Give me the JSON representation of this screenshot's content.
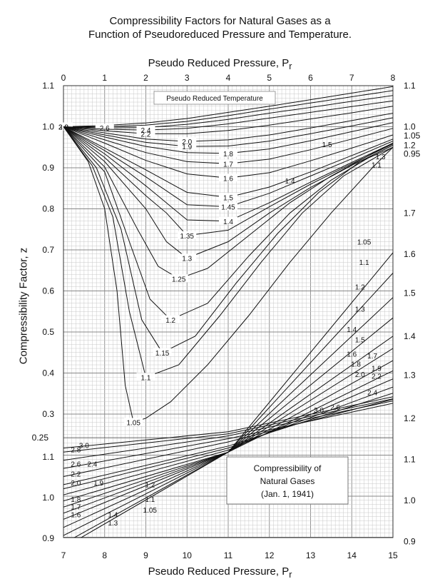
{
  "chart_data": {
    "type": "line",
    "title": "Compressibility Factors for Natural Gases as a",
    "subtitle": "Function of Pseudoreduced Pressure and Temperature.",
    "xlabel_top": "Pseudo Reduced Pressure,",
    "xlabel_bottom": "Pseudo Reduced Pressure,",
    "xlabel_symbol": "P",
    "xlabel_subscript": "r",
    "ylabel": "Compressibility Factor, z",
    "x_top_ticks": [
      "0",
      "1",
      "2",
      "3",
      "4",
      "5",
      "6",
      "7",
      "8"
    ],
    "x_bottom_ticks": [
      "7",
      "8",
      "9",
      "10",
      "11",
      "12",
      "13",
      "14",
      "15"
    ],
    "y_left_upper_ticks": [
      "1.1",
      "1.0",
      "0.9",
      "0.8",
      "0.7",
      "0.6",
      "0.5",
      "0.4",
      "0.3"
    ],
    "y_left_boundary": "0.25",
    "y_left_lower_ticks": [
      "1.1",
      "1.0",
      "0.9"
    ],
    "y_right_ticks": [
      {
        "label": "1.1",
        "z": 1.1
      },
      {
        "label": "1.0",
        "z": 1.0
      },
      {
        "label": "1.05",
        "z": 0.978
      },
      {
        "label": "1.2",
        "z": 0.955
      },
      {
        "label": "0.95",
        "z": 0.934
      },
      {
        "label": "1.7",
        "z": 0.79
      },
      {
        "label": "1.6",
        "z": 0.69
      },
      {
        "label": "1.5",
        "z": 0.595
      },
      {
        "label": "1.4",
        "z": 0.49
      },
      {
        "label": "1.3",
        "z": 0.395
      },
      {
        "label": "1.2",
        "z": 0.29
      },
      {
        "label": "1.1",
        "z": 0.19
      },
      {
        "label": "1.0",
        "z": 0.09
      },
      {
        "label": "0.9",
        "z": -0.01
      }
    ],
    "upper_range": {
      "x": [
        0,
        8
      ],
      "y": [
        0.25,
        1.1
      ]
    },
    "lower_range": {
      "x": [
        7,
        15
      ],
      "y": [
        0.9,
        1.15
      ]
    },
    "inner_label": "Pseudo Reduced Temperature",
    "note_lines": [
      "Compressibility of",
      "Natural Gases",
      "(Jan. 1, 1941)"
    ],
    "upper_curves": [
      {
        "name": "3.0",
        "x": [
          0,
          1,
          2,
          3,
          4,
          5,
          6,
          7,
          8
        ],
        "z": [
          1.0,
          1.003,
          1.009,
          1.02,
          1.035,
          1.05,
          1.066,
          1.082,
          1.098
        ]
      },
      {
        "name": "2.8",
        "x": [
          0,
          1,
          2,
          3,
          4,
          5,
          6,
          7,
          8
        ],
        "z": [
          1.0,
          1.0,
          1.004,
          1.013,
          1.027,
          1.043,
          1.058,
          1.073,
          1.088
        ]
      },
      {
        "name": "2.6",
        "x": [
          0,
          1,
          2,
          3,
          4,
          5,
          6,
          7,
          8
        ],
        "z": [
          1.0,
          0.997,
          0.998,
          1.006,
          1.018,
          1.033,
          1.047,
          1.062,
          1.076
        ]
      },
      {
        "name": "2.4",
        "x": [
          0,
          1,
          2,
          3,
          4,
          5,
          6,
          7,
          8
        ],
        "z": [
          1.0,
          0.994,
          0.992,
          0.996,
          1.007,
          1.021,
          1.035,
          1.049,
          1.063
        ]
      },
      {
        "name": "2.2",
        "x": [
          0,
          1,
          2,
          3,
          4,
          5,
          6,
          7,
          8
        ],
        "z": [
          1.0,
          0.99,
          0.983,
          0.983,
          0.991,
          1.004,
          1.019,
          1.034,
          1.05
        ]
      },
      {
        "name": "2.0",
        "x": [
          0,
          1,
          2,
          3,
          4,
          5,
          6,
          7,
          8
        ],
        "z": [
          1.0,
          0.985,
          0.97,
          0.964,
          0.968,
          0.98,
          0.997,
          1.015,
          1.033
        ]
      },
      {
        "name": "1.9",
        "x": [
          0,
          1,
          2,
          3,
          4,
          5,
          6,
          7,
          8
        ],
        "z": [
          1.0,
          0.98,
          0.962,
          0.952,
          0.953,
          0.965,
          0.983,
          1.002,
          1.022
        ]
      },
      {
        "name": "1.8",
        "x": [
          0,
          1,
          2,
          3,
          4,
          5,
          6,
          7,
          8
        ],
        "z": [
          1.0,
          0.975,
          0.952,
          0.937,
          0.935,
          0.946,
          0.966,
          0.988,
          1.01
        ]
      },
      {
        "name": "1.7",
        "x": [
          0,
          1,
          2,
          3,
          4,
          5,
          6,
          7,
          8
        ],
        "z": [
          1.0,
          0.968,
          0.937,
          0.915,
          0.91,
          0.921,
          0.944,
          0.97,
          0.996
        ]
      },
      {
        "name": "1.6",
        "x": [
          0,
          1,
          2,
          3,
          4,
          5,
          6,
          7,
          8
        ],
        "z": [
          1.0,
          0.96,
          0.918,
          0.885,
          0.875,
          0.888,
          0.917,
          0.948,
          0.98
        ]
      },
      {
        "name": "1.5",
        "x": [
          0,
          1,
          2,
          3,
          4,
          5,
          6,
          7,
          8
        ],
        "z": [
          1.0,
          0.948,
          0.895,
          0.84,
          0.828,
          0.853,
          0.89,
          0.93,
          0.97
        ]
      },
      {
        "name": "1.45",
        "x": [
          0,
          1,
          2,
          3,
          4,
          5,
          6,
          7,
          8
        ],
        "z": [
          1.0,
          0.942,
          0.878,
          0.81,
          0.805,
          0.838,
          0.88,
          0.922,
          0.965
        ]
      },
      {
        "name": "1.4",
        "x": [
          0,
          1,
          2,
          3,
          4,
          5,
          6,
          7,
          8
        ],
        "z": [
          1.0,
          0.934,
          0.856,
          0.773,
          0.77,
          0.815,
          0.865,
          0.913,
          0.96
        ]
      },
      {
        "name": "1.35",
        "x": [
          0,
          1,
          2,
          2.5,
          3,
          4,
          5,
          6,
          7,
          8
        ],
        "z": [
          1.0,
          0.925,
          0.832,
          0.79,
          0.735,
          0.748,
          0.805,
          0.86,
          0.91,
          0.958
        ]
      },
      {
        "name": "1.3",
        "x": [
          0,
          1,
          2,
          2.5,
          3,
          4,
          5,
          6,
          7,
          8
        ],
        "z": [
          1.0,
          0.915,
          0.8,
          0.72,
          0.68,
          0.72,
          0.79,
          0.852,
          0.906,
          0.955
        ]
      },
      {
        "name": "1.25",
        "x": [
          0,
          1,
          1.8,
          2.3,
          2.8,
          3.5,
          4.5,
          5.5,
          6.5,
          7.5,
          8
        ],
        "z": [
          1.0,
          0.902,
          0.75,
          0.66,
          0.63,
          0.655,
          0.735,
          0.815,
          0.88,
          0.935,
          0.96
        ]
      },
      {
        "name": "1.2",
        "x": [
          0,
          1,
          1.6,
          2.1,
          2.6,
          3.5,
          4.5,
          5.5,
          6.5,
          7.5,
          8
        ],
        "z": [
          1.0,
          0.89,
          0.72,
          0.58,
          0.53,
          0.57,
          0.685,
          0.79,
          0.87,
          0.93,
          0.955
        ]
      },
      {
        "name": "1.15",
        "x": [
          0,
          0.8,
          1.4,
          1.9,
          2.4,
          3.2,
          4.2,
          5.2,
          6.2,
          7.2,
          8
        ],
        "z": [
          1.0,
          0.9,
          0.75,
          0.53,
          0.45,
          0.49,
          0.62,
          0.74,
          0.84,
          0.915,
          0.95
        ]
      },
      {
        "name": "1.1",
        "x": [
          0,
          0.7,
          1.2,
          1.6,
          2.0,
          2.8,
          3.8,
          4.8,
          5.8,
          6.8,
          8
        ],
        "z": [
          1.0,
          0.905,
          0.78,
          0.55,
          0.39,
          0.42,
          0.54,
          0.67,
          0.79,
          0.88,
          0.95
        ]
      },
      {
        "name": "1.05",
        "x": [
          0,
          0.6,
          1.0,
          1.3,
          1.5,
          1.7,
          2.0,
          2.6,
          3.5,
          4.5,
          5.5,
          6.5,
          7.5,
          8
        ],
        "z": [
          1.0,
          0.915,
          0.8,
          0.6,
          0.37,
          0.28,
          0.29,
          0.33,
          0.42,
          0.54,
          0.67,
          0.79,
          0.9,
          0.95
        ]
      }
    ],
    "lower_curves": [
      {
        "name": "3.0",
        "x": [
          7,
          11,
          15
        ],
        "z": [
          1.12,
          1.16,
          1.246
        ]
      },
      {
        "name": "2.8",
        "x": [
          7,
          11,
          15
        ],
        "z": [
          1.11,
          1.155,
          1.241
        ]
      },
      {
        "name": "2.6",
        "x": [
          7,
          11,
          15
        ],
        "z": [
          1.09,
          1.15,
          1.236
        ]
      },
      {
        "name": "2.4",
        "x": [
          7,
          11,
          15
        ],
        "z": [
          1.07,
          1.143,
          1.23
        ]
      },
      {
        "name": "2.2",
        "x": [
          7,
          11,
          15
        ],
        "z": [
          1.05,
          1.135,
          1.24
        ]
      },
      {
        "name": "2.0",
        "x": [
          7,
          11,
          15
        ],
        "z": [
          1.03,
          1.125,
          1.255
        ]
      },
      {
        "name": "1.9",
        "x": [
          7,
          11,
          15
        ],
        "z": [
          1.02,
          1.12,
          1.27
        ]
      },
      {
        "name": "1.8",
        "x": [
          7,
          11,
          15
        ],
        "z": [
          1.005,
          1.115,
          1.29
        ]
      },
      {
        "name": "1.7",
        "x": [
          7,
          11,
          15
        ],
        "z": [
          0.99,
          1.11,
          1.31
        ]
      },
      {
        "name": "1.6",
        "x": [
          7,
          11,
          15
        ],
        "z": [
          0.975,
          1.11,
          1.335
        ]
      },
      {
        "name": "1.5",
        "x": [
          7,
          11,
          15
        ],
        "z": [
          0.96,
          1.11,
          1.365
        ]
      },
      {
        "name": "1.4",
        "x": [
          7,
          11,
          15
        ],
        "z": [
          0.945,
          1.11,
          1.395
        ]
      },
      {
        "name": "1.3",
        "x": [
          7,
          11,
          15
        ],
        "z": [
          0.925,
          1.11,
          1.44
        ]
      },
      {
        "name": "1.2",
        "x": [
          7,
          11,
          15
        ],
        "z": [
          0.905,
          1.11,
          1.49
        ]
      },
      {
        "name": "1.1",
        "x": [
          7,
          11,
          15
        ],
        "z": [
          0.885,
          1.11,
          1.55
        ]
      },
      {
        "name": "1.05",
        "x": [
          7,
          11,
          15
        ],
        "z": [
          0.875,
          1.11,
          1.6
        ]
      }
    ],
    "lower_labels": [
      {
        "t": "3.0",
        "x": 7.5,
        "z": 1.12
      },
      {
        "t": "2.8",
        "x": 7.3,
        "z": 1.11
      },
      {
        "t": "2.6",
        "x": 7.3,
        "z": 1.075
      },
      {
        "t": "2.4",
        "x": 7.7,
        "z": 1.075
      },
      {
        "t": "2.2",
        "x": 7.3,
        "z": 1.05
      },
      {
        "t": "2.0",
        "x": 7.3,
        "z": 1.028
      },
      {
        "t": "1.9",
        "x": 7.85,
        "z": 1.028
      },
      {
        "t": "1.8",
        "x": 7.3,
        "z": 0.988
      },
      {
        "t": "1.7",
        "x": 7.3,
        "z": 0.969
      },
      {
        "t": "1.6",
        "x": 7.3,
        "z": 0.95
      },
      {
        "t": "1.4",
        "x": 8.2,
        "z": 0.95
      },
      {
        "t": "1.3",
        "x": 8.2,
        "z": 0.93
      },
      {
        "t": "1.2",
        "x": 9.1,
        "z": 1.024
      },
      {
        "t": "1.1",
        "x": 9.1,
        "z": 0.988
      },
      {
        "t": "1.05",
        "x": 9.1,
        "z": 0.961
      },
      {
        "t": "3.0",
        "x": 13.2,
        "z": 1.207
      },
      {
        "t": "2.6",
        "x": 13.6,
        "z": 1.214
      },
      {
        "t": "2.4",
        "x": 14.5,
        "z": 1.25
      },
      {
        "t": "2.2",
        "x": 14.6,
        "z": 1.29
      },
      {
        "t": "2.0",
        "x": 14.2,
        "z": 1.295
      },
      {
        "t": "1.9",
        "x": 14.6,
        "z": 1.31
      },
      {
        "t": "1.8",
        "x": 14.1,
        "z": 1.32
      },
      {
        "t": "1.7",
        "x": 14.5,
        "z": 1.34
      },
      {
        "t": "1.6",
        "x": 14.0,
        "z": 1.345
      },
      {
        "t": "1.5",
        "x": 14.2,
        "z": 1.38
      },
      {
        "t": "1.4",
        "x": 14.0,
        "z": 1.405
      },
      {
        "t": "1.3",
        "x": 14.2,
        "z": 1.455
      },
      {
        "t": "1.2",
        "x": 14.2,
        "z": 1.51
      },
      {
        "t": "1.1",
        "x": 14.3,
        "z": 1.57
      },
      {
        "t": "1.05",
        "x": 14.3,
        "z": 1.62
      },
      {
        "t": "1.5",
        "x": 13.4,
        "z": 1.86
      },
      {
        "t": "1.4",
        "x": 12.5,
        "z": 1.77
      },
      {
        "t": "1.3",
        "x": 14.7,
        "z": 1.83
      },
      {
        "t": "1.1",
        "x": 14.6,
        "z": 1.81
      }
    ],
    "grid": true
  }
}
